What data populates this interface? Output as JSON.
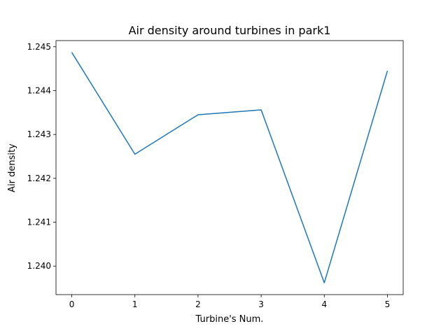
{
  "chart_data": {
    "type": "line",
    "title": "Air density around turbines in park1",
    "xlabel": "Turbine's Num.",
    "ylabel": "Air density",
    "x": [
      0,
      1,
      2,
      3,
      4,
      5
    ],
    "series": [
      {
        "values": [
          1.24487,
          1.24255,
          1.24345,
          1.24356,
          1.23962,
          1.24445
        ],
        "color": "#1f77b4"
      }
    ],
    "xlim": [
      -0.25,
      5.25
    ],
    "ylim": [
      1.23935,
      1.24514
    ],
    "xticks": [
      0,
      1,
      2,
      3,
      4,
      5
    ],
    "xtick_labels": [
      "0",
      "1",
      "2",
      "3",
      "4",
      "5"
    ],
    "yticks": [
      1.24,
      1.241,
      1.242,
      1.243,
      1.244,
      1.245
    ],
    "ytick_labels": [
      "1.240",
      "1.241",
      "1.242",
      "1.243",
      "1.244",
      "1.245"
    ],
    "grid": false,
    "legend": false
  }
}
